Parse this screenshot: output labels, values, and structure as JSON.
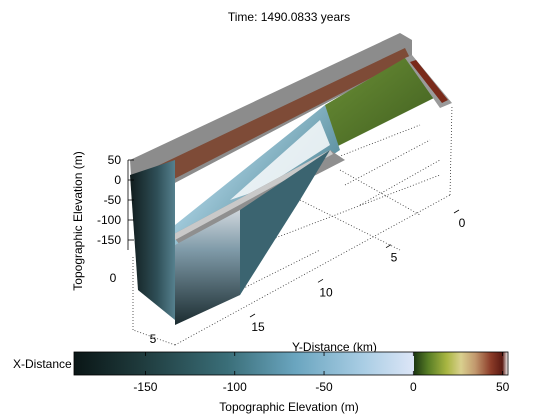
{
  "chart_data": {
    "type": "surface",
    "title": "Time: 1490.0833 years",
    "zlabel": "Topographic Elevation (m)",
    "xlabel": "X-Distance (km)",
    "ylabel": "Y-Distance (km)",
    "z_ticks": [
      50,
      0,
      -50,
      -100,
      -150
    ],
    "x_ticks": [
      0,
      5
    ],
    "y_ticks": [
      0,
      5,
      10,
      15
    ],
    "colorbar": {
      "label": "Topographic Elevation (m)",
      "range": [
        -190,
        53
      ],
      "ticks": [
        -150,
        -100,
        -50,
        0,
        50
      ],
      "negative_colors": [
        "#0a1616",
        "#1f3b3d",
        "#3a6e78",
        "#6aa5bf",
        "#a9cde4",
        "#dde6f7"
      ],
      "positive_colors": [
        "#1c3612",
        "#577d25",
        "#a9b642",
        "#d9d08e",
        "#c2996e",
        "#8b3b28",
        "#5b1a12",
        "#ffffff"
      ]
    },
    "palette": {
      "wall": "#a8a8a8",
      "plateau": "#5b7b2e",
      "channel": "#b9dcec",
      "deep": "#1b3134"
    }
  }
}
